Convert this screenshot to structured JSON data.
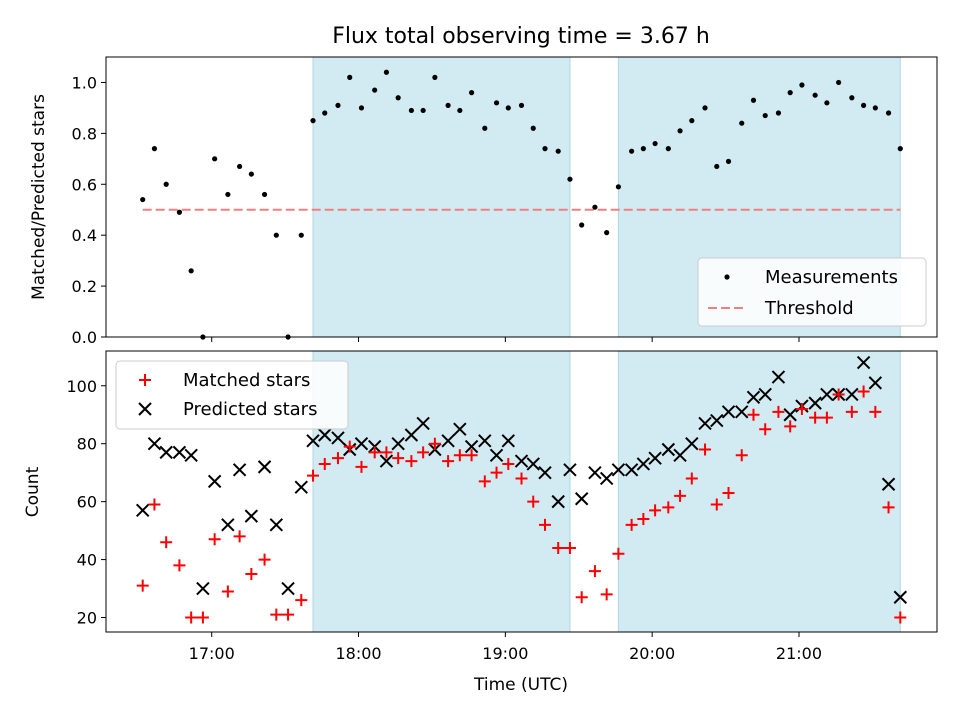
{
  "chart_data": [
    {
      "type": "scatter",
      "title": "Flux total observing time = 3.67 h",
      "xlabel": "",
      "ylabel": "Matched/Predicted stars",
      "ylim": [
        0,
        1.1
      ],
      "yticks": [
        "0.0",
        "0.2",
        "0.4",
        "0.6",
        "0.8",
        "1.0"
      ],
      "shaded_intervals_hours": [
        [
          17.69,
          19.44
        ],
        [
          19.77,
          21.69
        ]
      ],
      "shade_color": "#add8e6",
      "threshold": {
        "label": "Threshold",
        "value": 0.5,
        "x_range": [
          16.53,
          21.69
        ],
        "color": "#f08080"
      },
      "series": [
        {
          "name": "Measurements",
          "color": "#000000",
          "x": [
            16.53,
            16.61,
            16.69,
            16.78,
            16.86,
            16.94,
            17.02,
            17.11,
            17.19,
            17.27,
            17.36,
            17.44,
            17.52,
            17.61,
            17.69,
            17.77,
            17.86,
            17.94,
            18.02,
            18.11,
            18.19,
            18.27,
            18.36,
            18.44,
            18.52,
            18.61,
            18.69,
            18.77,
            18.86,
            18.94,
            19.02,
            19.11,
            19.19,
            19.27,
            19.36,
            19.44,
            19.52,
            19.61,
            19.69,
            19.77,
            19.86,
            19.94,
            20.02,
            20.11,
            20.19,
            20.27,
            20.36,
            20.44,
            20.52,
            20.61,
            20.69,
            20.77,
            20.86,
            20.94,
            21.02,
            21.11,
            21.19,
            21.27,
            21.36,
            21.44,
            21.52,
            21.61,
            21.69
          ],
          "y": [
            0.54,
            0.74,
            0.6,
            0.49,
            0.26,
            0.0,
            0.7,
            0.56,
            0.67,
            0.64,
            0.56,
            0.4,
            0.0,
            0.4,
            0.85,
            0.88,
            0.91,
            1.02,
            0.9,
            0.97,
            1.04,
            0.94,
            0.89,
            0.89,
            1.02,
            0.91,
            0.89,
            0.96,
            0.82,
            0.92,
            0.9,
            0.91,
            0.82,
            0.74,
            0.73,
            0.62,
            0.44,
            0.51,
            0.41,
            0.59,
            0.73,
            0.74,
            0.76,
            0.74,
            0.81,
            0.85,
            0.9,
            0.67,
            0.69,
            0.84,
            0.93,
            0.87,
            0.88,
            0.96,
            0.99,
            0.95,
            0.92,
            1.0,
            0.94,
            0.91,
            0.9,
            0.88,
            0.74
          ]
        }
      ],
      "legend": [
        {
          "label": "Measurements",
          "marker": "dot"
        },
        {
          "label": "Threshold",
          "marker": "dashed-line"
        }
      ],
      "legend_position": "lower-right"
    },
    {
      "type": "scatter",
      "xlabel": "Time (UTC)",
      "ylabel": "Count",
      "xlim_hours": [
        16.28,
        21.94
      ],
      "xticks": [
        17,
        18,
        19,
        20,
        21
      ],
      "xtick_labels": [
        "17:00",
        "18:00",
        "19:00",
        "20:00",
        "21:00"
      ],
      "ylim": [
        15,
        112
      ],
      "yticks": [
        "20",
        "40",
        "60",
        "80",
        "100"
      ],
      "series": [
        {
          "name": "Matched stars",
          "marker": "plus",
          "color": "#ff0000",
          "x": [
            16.53,
            16.61,
            16.69,
            16.78,
            16.86,
            16.94,
            17.02,
            17.11,
            17.19,
            17.27,
            17.36,
            17.44,
            17.52,
            17.61,
            17.69,
            17.77,
            17.86,
            17.94,
            18.02,
            18.11,
            18.19,
            18.27,
            18.36,
            18.44,
            18.52,
            18.61,
            18.69,
            18.77,
            18.86,
            18.94,
            19.02,
            19.11,
            19.19,
            19.27,
            19.36,
            19.44,
            19.52,
            19.61,
            19.69,
            19.77,
            19.86,
            19.94,
            20.02,
            20.11,
            20.19,
            20.27,
            20.36,
            20.44,
            20.52,
            20.61,
            20.69,
            20.77,
            20.86,
            20.94,
            21.02,
            21.11,
            21.19,
            21.27,
            21.36,
            21.44,
            21.52,
            21.61,
            21.69
          ],
          "y": [
            31,
            59,
            46,
            38,
            20,
            20,
            47,
            29,
            48,
            35,
            40,
            21,
            21,
            26,
            69,
            73,
            75,
            79,
            72,
            77,
            77,
            75,
            74,
            77,
            80,
            74,
            76,
            76,
            67,
            70,
            73,
            68,
            60,
            52,
            44,
            44,
            27,
            36,
            28,
            42,
            52,
            54,
            57,
            58,
            62,
            68,
            78,
            59,
            63,
            76,
            90,
            85,
            91,
            86,
            92,
            89,
            89,
            97,
            91,
            98,
            91,
            58,
            20
          ]
        },
        {
          "name": "Predicted stars",
          "marker": "x",
          "color": "#000000",
          "x": [
            16.53,
            16.61,
            16.69,
            16.78,
            16.86,
            16.94,
            17.02,
            17.11,
            17.19,
            17.27,
            17.36,
            17.44,
            17.52,
            17.61,
            17.69,
            17.77,
            17.86,
            17.94,
            18.02,
            18.11,
            18.19,
            18.27,
            18.36,
            18.44,
            18.52,
            18.61,
            18.69,
            18.77,
            18.86,
            18.94,
            19.02,
            19.11,
            19.19,
            19.27,
            19.36,
            19.44,
            19.52,
            19.61,
            19.69,
            19.77,
            19.86,
            19.94,
            20.02,
            20.11,
            20.19,
            20.27,
            20.36,
            20.44,
            20.52,
            20.61,
            20.69,
            20.77,
            20.86,
            20.94,
            21.02,
            21.11,
            21.19,
            21.27,
            21.36,
            21.44,
            21.52,
            21.61,
            21.69
          ],
          "y": [
            57,
            80,
            77,
            77,
            76,
            30,
            67,
            52,
            71,
            55,
            72,
            52,
            30,
            65,
            81,
            83,
            82,
            78,
            80,
            79,
            74,
            80,
            83,
            87,
            78,
            81,
            85,
            79,
            81,
            76,
            81,
            74,
            73,
            70,
            60,
            71,
            61,
            70,
            68,
            71,
            71,
            73,
            75,
            78,
            76,
            80,
            87,
            88,
            91,
            91,
            96,
            97,
            103,
            90,
            93,
            94,
            97,
            97,
            97,
            108,
            101,
            66,
            27
          ]
        }
      ],
      "legend": [
        {
          "label": "Matched stars",
          "marker": "plus"
        },
        {
          "label": "Predicted stars",
          "marker": "x"
        }
      ],
      "legend_position": "upper-left"
    }
  ]
}
